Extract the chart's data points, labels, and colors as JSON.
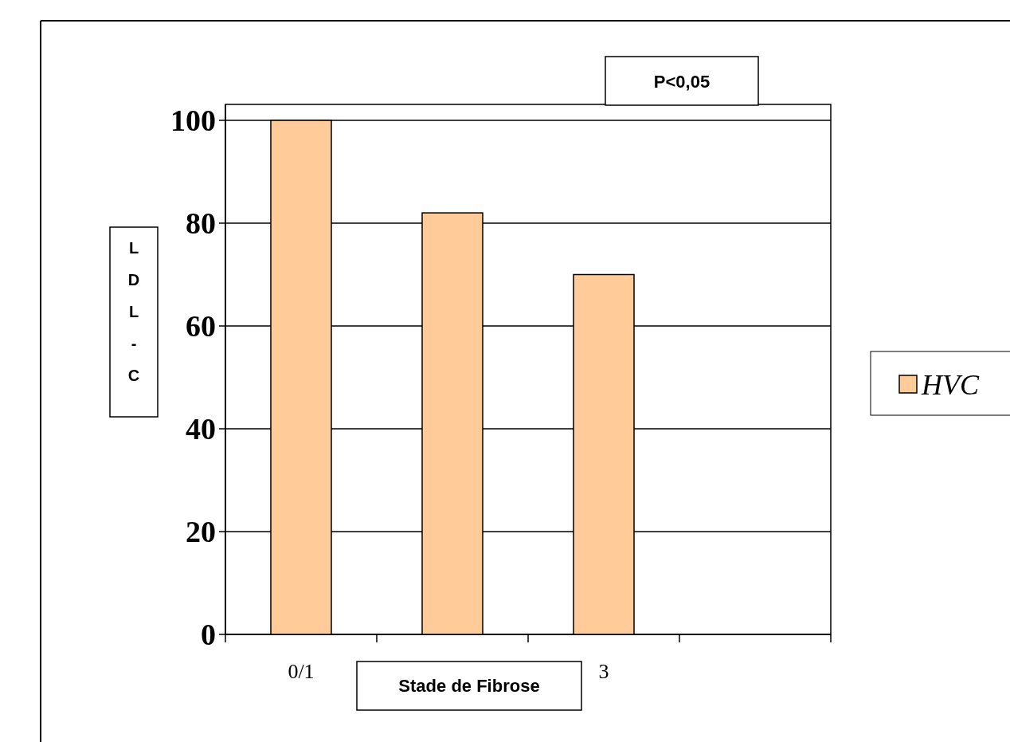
{
  "chart_data": {
    "type": "bar",
    "categories": [
      "0/1",
      null,
      "3",
      null
    ],
    "series": [
      {
        "name": "HVC",
        "color": "#ffcc99",
        "values": [
          100,
          82,
          70,
          null
        ]
      }
    ],
    "xlabel": "Stade de Fibrose",
    "ylabel": "LDL-C",
    "annotations": [
      "P<0,05"
    ],
    "ylim": [
      0,
      100
    ],
    "yticks": [
      0,
      20,
      40,
      60,
      80,
      100
    ],
    "grid": "y",
    "legend": "right"
  }
}
